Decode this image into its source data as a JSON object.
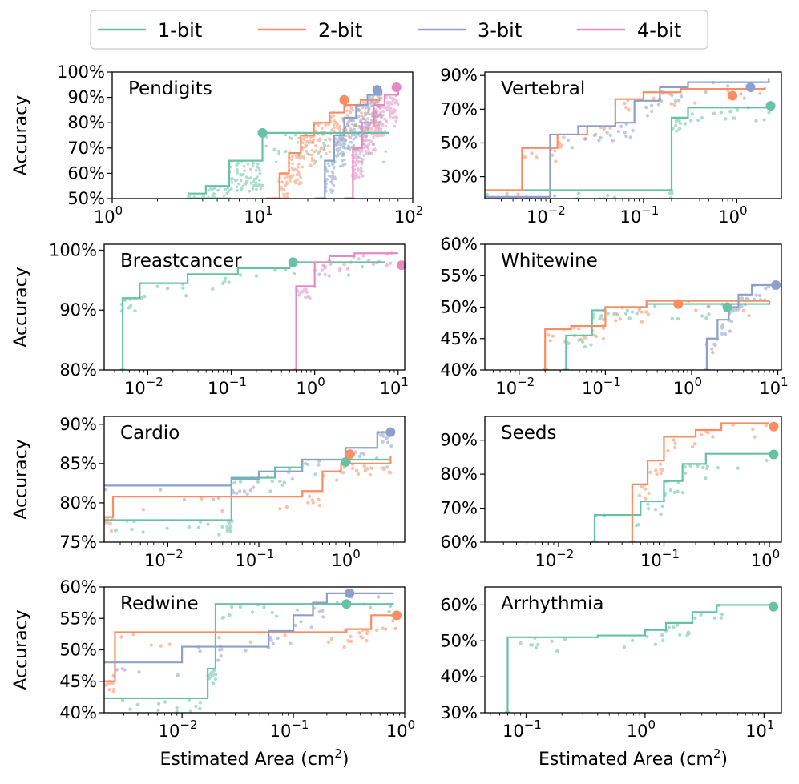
{
  "colors": {
    "1-bit": "#66c2a5",
    "2-bit": "#fc8d62",
    "3-bit": "#8da0cb",
    "4-bit": "#e78ac3"
  },
  "legend": {
    "entries": [
      "1-bit",
      "2-bit",
      "3-bit",
      "4-bit"
    ]
  },
  "labels": {
    "ylabel": "Accuracy",
    "xlabel_base": "Estimated Area (cm",
    "xlabel_sup": "2",
    "xlabel_close": ")"
  },
  "chart_data": [
    {
      "type": "line",
      "title": "Pendigits",
      "xscale": "log",
      "xlim": [
        1,
        100
      ],
      "ylim": [
        50,
        100
      ],
      "xticks": [
        {
          "value": 1,
          "label": "10",
          "exp": "0"
        },
        {
          "value": 10,
          "label": "10",
          "exp": "1"
        },
        {
          "value": 100,
          "label": "10",
          "exp": "2"
        }
      ],
      "yticks": [
        {
          "value": 50,
          "label": "50%"
        },
        {
          "value": 60,
          "label": "60%"
        },
        {
          "value": 70,
          "label": "70%"
        },
        {
          "value": 80,
          "label": "80%"
        },
        {
          "value": 90,
          "label": "90%"
        },
        {
          "value": 100,
          "label": "100%"
        }
      ],
      "series": [
        {
          "name": "1-bit",
          "x": [
            3.2,
            4.2,
            6.0,
            10.0,
            70
          ],
          "y": [
            52,
            55,
            65,
            76,
            76
          ],
          "marker": [
            10,
            76
          ]
        },
        {
          "name": "2-bit",
          "x": [
            10.5,
            13,
            15,
            18,
            22,
            28,
            35,
            45,
            60
          ],
          "y": [
            50,
            60,
            68,
            75,
            80,
            84,
            87,
            89,
            90
          ],
          "marker": [
            35,
            89
          ]
        },
        {
          "name": "3-bit",
          "x": [
            23,
            26,
            30,
            35,
            42,
            50,
            62
          ],
          "y": [
            50,
            65,
            75,
            82,
            87,
            91,
            93
          ],
          "marker": [
            58,
            93
          ]
        },
        {
          "name": "4-bit",
          "x": [
            36,
            40,
            46,
            55,
            65,
            80
          ],
          "y": [
            50,
            70,
            80,
            87,
            91,
            94
          ],
          "marker": [
            78,
            94
          ]
        }
      ],
      "scatter_cloud": true
    },
    {
      "type": "line",
      "title": "Vertebral",
      "xscale": "log",
      "xlim": [
        0.002,
        3
      ],
      "ylim": [
        17,
        92
      ],
      "xticks": [
        {
          "value": 0.01,
          "label": "10",
          "exp": "−2"
        },
        {
          "value": 0.1,
          "label": "10",
          "exp": "−1"
        },
        {
          "value": 1,
          "label": "10",
          "exp": "0"
        }
      ],
      "yticks": [
        {
          "value": 30,
          "label": "30%"
        },
        {
          "value": 50,
          "label": "50%"
        },
        {
          "value": 70,
          "label": "70%"
        },
        {
          "value": 90,
          "label": "90%"
        }
      ],
      "series": [
        {
          "name": "1-bit",
          "x": [
            0.002,
            0.19,
            0.2,
            0.3,
            2.3
          ],
          "y": [
            22,
            22,
            65,
            71,
            72
          ],
          "marker": [
            2.3,
            72
          ]
        },
        {
          "name": "2-bit",
          "x": [
            0.002,
            0.005,
            0.012,
            0.025,
            0.05,
            0.1,
            0.25,
            2.0
          ],
          "y": [
            22,
            47,
            55,
            60,
            76,
            80,
            82,
            83
          ],
          "marker": [
            0.9,
            78
          ]
        },
        {
          "name": "3-bit",
          "x": [
            0.002,
            0.01,
            0.02,
            0.05,
            0.08,
            0.15,
            0.3,
            2.2
          ],
          "y": [
            18,
            55,
            60,
            62,
            75,
            83,
            86,
            88
          ],
          "marker": [
            1.4,
            83
          ]
        }
      ]
    },
    {
      "type": "line",
      "title": "Breastcancer",
      "xscale": "log",
      "xlim": [
        0.003,
        12
      ],
      "ylim": [
        80,
        101
      ],
      "xticks": [
        {
          "value": 0.01,
          "label": "10",
          "exp": "−2"
        },
        {
          "value": 0.1,
          "label": "10",
          "exp": "−1"
        },
        {
          "value": 1,
          "label": "10",
          "exp": "0"
        },
        {
          "value": 10,
          "label": "10",
          "exp": "1"
        }
      ],
      "yticks": [
        {
          "value": 80,
          "label": "80%"
        },
        {
          "value": 90,
          "label": "90%"
        },
        {
          "value": 100,
          "label": "100%"
        }
      ],
      "series": [
        {
          "name": "1-bit",
          "x": [
            0.005,
            0.005,
            0.008,
            0.03,
            0.12,
            0.5,
            7
          ],
          "y": [
            80,
            92,
            94.5,
            96,
            97,
            98,
            98
          ],
          "marker": [
            0.55,
            98
          ]
        },
        {
          "name": "4-bit",
          "x": [
            0.6,
            0.6,
            1.0,
            1.5,
            3,
            10
          ],
          "y": [
            80,
            94,
            98,
            99,
            99.5,
            99.5
          ],
          "marker": [
            11,
            97.5
          ]
        }
      ]
    },
    {
      "type": "line",
      "title": "Whitewine",
      "xscale": "log",
      "xlim": [
        0.004,
        11
      ],
      "ylim": [
        40,
        60
      ],
      "xticks": [
        {
          "value": 0.01,
          "label": "10",
          "exp": "−2"
        },
        {
          "value": 0.1,
          "label": "10",
          "exp": "−1"
        },
        {
          "value": 1,
          "label": "10",
          "exp": "0"
        },
        {
          "value": 10,
          "label": "10",
          "exp": "1"
        }
      ],
      "yticks": [
        {
          "value": 40,
          "label": "40%"
        },
        {
          "value": 45,
          "label": "45%"
        },
        {
          "value": 50,
          "label": "50%"
        },
        {
          "value": 55,
          "label": "55%"
        },
        {
          "value": 60,
          "label": "60%"
        }
      ],
      "series": [
        {
          "name": "1-bit",
          "x": [
            0.035,
            0.035,
            0.07,
            0.1,
            0.3,
            8
          ],
          "y": [
            40,
            45.5,
            49.5,
            50,
            50.5,
            51
          ],
          "marker": [
            2.6,
            50
          ]
        },
        {
          "name": "2-bit",
          "x": [
            0.02,
            0.02,
            0.04,
            0.1,
            0.3,
            8
          ],
          "y": [
            40,
            46.5,
            47,
            50,
            51,
            51
          ],
          "marker": [
            0.7,
            50.5
          ]
        },
        {
          "name": "3-bit",
          "x": [
            1.5,
            1.5,
            2.0,
            2.7,
            3.5,
            5,
            9
          ],
          "y": [
            40,
            45,
            48,
            50,
            52,
            53.5,
            54
          ],
          "marker": [
            9.5,
            53.5
          ]
        }
      ]
    },
    {
      "type": "line",
      "title": "Cardio",
      "xscale": "log",
      "xlim": [
        0.002,
        4
      ],
      "ylim": [
        75,
        91
      ],
      "xticks": [
        {
          "value": 0.01,
          "label": "10",
          "exp": "−2"
        },
        {
          "value": 0.1,
          "label": "10",
          "exp": "−1"
        },
        {
          "value": 1,
          "label": "10",
          "exp": "0"
        }
      ],
      "yticks": [
        {
          "value": 75,
          "label": "75%"
        },
        {
          "value": 80,
          "label": "80%"
        },
        {
          "value": 85,
          "label": "85%"
        },
        {
          "value": 90,
          "label": "90%"
        }
      ],
      "series": [
        {
          "name": "1-bit",
          "x": [
            0.002,
            0.045,
            0.05,
            0.15,
            0.3,
            2.8
          ],
          "y": [
            77.8,
            77.8,
            83.2,
            84.5,
            85.5,
            85.5
          ],
          "marker": [
            0.9,
            85.2
          ]
        },
        {
          "name": "2-bit",
          "x": [
            0.002,
            0.0025,
            0.3,
            0.5,
            0.8,
            2.8
          ],
          "y": [
            78.2,
            80.8,
            81.5,
            84,
            85,
            86
          ],
          "marker": [
            1.0,
            86.2
          ]
        },
        {
          "name": "3-bit",
          "x": [
            0.002,
            0.05,
            0.1,
            0.3,
            0.9,
            2.0,
            2.8
          ],
          "y": [
            82.2,
            83,
            84,
            85.5,
            87,
            89,
            89.5
          ],
          "marker": [
            2.8,
            89
          ]
        }
      ]
    },
    {
      "type": "line",
      "title": "Seeds",
      "xscale": "log",
      "xlim": [
        0.002,
        1.3
      ],
      "ylim": [
        60,
        97
      ],
      "xticks": [
        {
          "value": 0.01,
          "label": "10",
          "exp": "−2"
        },
        {
          "value": 0.1,
          "label": "10",
          "exp": "−1"
        },
        {
          "value": 1,
          "label": "10",
          "exp": "0"
        }
      ],
      "yticks": [
        {
          "value": 60,
          "label": "60%"
        },
        {
          "value": 70,
          "label": "70%"
        },
        {
          "value": 80,
          "label": "80%"
        },
        {
          "value": 90,
          "label": "90%"
        }
      ],
      "series": [
        {
          "name": "1-bit",
          "x": [
            0.022,
            0.022,
            0.06,
            0.1,
            0.15,
            0.25,
            1.0
          ],
          "y": [
            60,
            68,
            72,
            78,
            83,
            86,
            86
          ],
          "marker": [
            1.1,
            85.8
          ]
        },
        {
          "name": "2-bit",
          "x": [
            0.05,
            0.05,
            0.07,
            0.1,
            0.2,
            0.35,
            1.0
          ],
          "y": [
            60,
            77,
            84,
            91,
            93,
            95,
            95
          ],
          "marker": [
            1.1,
            94
          ]
        }
      ]
    },
    {
      "type": "line",
      "title": "Redwine",
      "xscale": "log",
      "xlim": [
        0.002,
        1.0
      ],
      "ylim": [
        40,
        60
      ],
      "xticks": [
        {
          "value": 0.01,
          "label": "10",
          "exp": "−2"
        },
        {
          "value": 0.1,
          "label": "10",
          "exp": "−1"
        },
        {
          "value": 1,
          "label": "10",
          "exp": "0"
        }
      ],
      "yticks": [
        {
          "value": 40,
          "label": "40%"
        },
        {
          "value": 45,
          "label": "45%"
        },
        {
          "value": 50,
          "label": "50%"
        },
        {
          "value": 55,
          "label": "55%"
        },
        {
          "value": 60,
          "label": "60%"
        }
      ],
      "series": [
        {
          "name": "1-bit",
          "x": [
            0.002,
            0.017,
            0.02,
            0.8
          ],
          "y": [
            42.3,
            47,
            57.3,
            57.3
          ],
          "marker": [
            0.3,
            57.3
          ]
        },
        {
          "name": "2-bit",
          "x": [
            0.002,
            0.0025,
            0.3,
            0.5,
            0.9
          ],
          "y": [
            45,
            52.8,
            53.3,
            55.5,
            55.8
          ],
          "marker": [
            0.85,
            55.5
          ]
        },
        {
          "name": "3-bit",
          "x": [
            0.002,
            0.01,
            0.06,
            0.1,
            0.15,
            0.2,
            0.8
          ],
          "y": [
            48,
            50.5,
            53,
            55.5,
            57.5,
            59,
            59
          ],
          "marker": [
            0.32,
            59
          ]
        }
      ]
    },
    {
      "type": "line",
      "title": "Arrhythmia",
      "xscale": "log",
      "xlim": [
        0.045,
        14
      ],
      "ylim": [
        30,
        65
      ],
      "xticks": [
        {
          "value": 0.1,
          "label": "10",
          "exp": "−1"
        },
        {
          "value": 1,
          "label": "10",
          "exp": "0"
        },
        {
          "value": 10,
          "label": "10",
          "exp": "1"
        }
      ],
      "yticks": [
        {
          "value": 30,
          "label": "30%"
        },
        {
          "value": 40,
          "label": "40%"
        },
        {
          "value": 50,
          "label": "50%"
        },
        {
          "value": 60,
          "label": "60%"
        }
      ],
      "series": [
        {
          "name": "1-bit",
          "x": [
            0.07,
            0.07,
            0.4,
            1.0,
            1.5,
            2.5,
            4.0,
            12
          ],
          "y": [
            30,
            51,
            51.5,
            53,
            55,
            58,
            60,
            60.5
          ],
          "marker": [
            12,
            59.5
          ]
        }
      ]
    }
  ]
}
